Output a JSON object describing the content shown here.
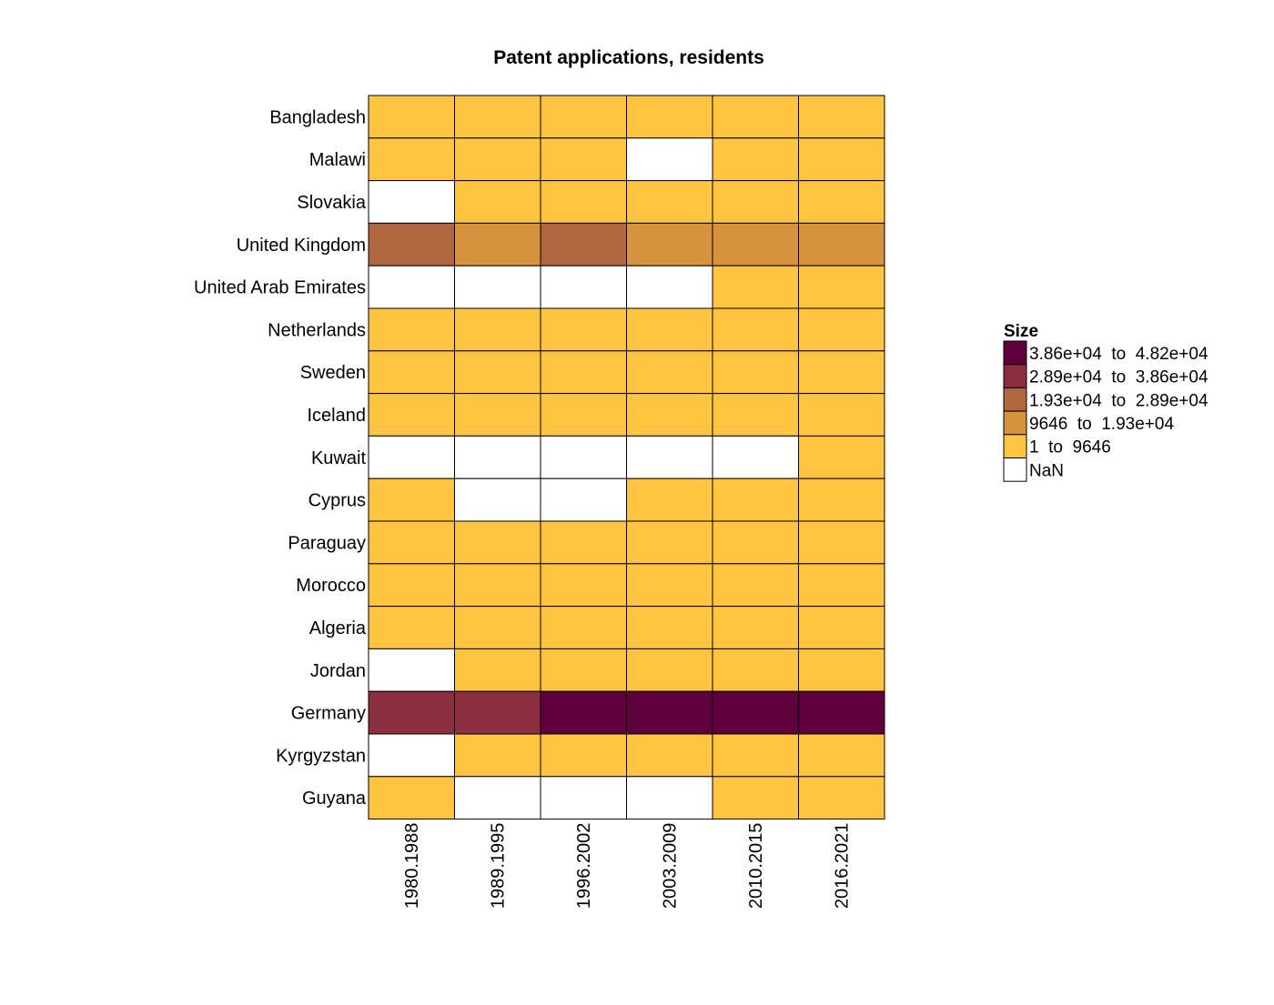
{
  "chart_data": {
    "type": "heatmap",
    "title": "Patent applications, residents",
    "xlabel": "",
    "ylabel": "",
    "categories": [
      "1980.1988",
      "1989.1995",
      "1996.2002",
      "2003.2009",
      "2010.2015",
      "2016.2021"
    ],
    "rows": [
      {
        "name": "Bangladesh",
        "classes": [
          1,
          1,
          1,
          1,
          1,
          1
        ]
      },
      {
        "name": "Malawi",
        "classes": [
          1,
          1,
          1,
          0,
          1,
          1
        ]
      },
      {
        "name": "Slovakia",
        "classes": [
          0,
          1,
          1,
          1,
          1,
          1
        ]
      },
      {
        "name": "United Kingdom",
        "classes": [
          3,
          2,
          3,
          2,
          2,
          2
        ]
      },
      {
        "name": "United Arab Emirates",
        "classes": [
          0,
          0,
          0,
          0,
          1,
          1
        ]
      },
      {
        "name": "Netherlands",
        "classes": [
          1,
          1,
          1,
          1,
          1,
          1
        ]
      },
      {
        "name": "Sweden",
        "classes": [
          1,
          1,
          1,
          1,
          1,
          1
        ]
      },
      {
        "name": "Iceland",
        "classes": [
          1,
          1,
          1,
          1,
          1,
          1
        ]
      },
      {
        "name": "Kuwait",
        "classes": [
          0,
          0,
          0,
          0,
          0,
          1
        ]
      },
      {
        "name": "Cyprus",
        "classes": [
          1,
          0,
          0,
          1,
          1,
          1
        ]
      },
      {
        "name": "Paraguay",
        "classes": [
          1,
          1,
          1,
          1,
          1,
          1
        ]
      },
      {
        "name": "Morocco",
        "classes": [
          1,
          1,
          1,
          1,
          1,
          1
        ]
      },
      {
        "name": "Algeria",
        "classes": [
          1,
          1,
          1,
          1,
          1,
          1
        ]
      },
      {
        "name": "Jordan",
        "classes": [
          0,
          1,
          1,
          1,
          1,
          1
        ]
      },
      {
        "name": "Germany",
        "classes": [
          4,
          4,
          5,
          5,
          5,
          5
        ]
      },
      {
        "name": "Kyrgyzstan",
        "classes": [
          0,
          1,
          1,
          1,
          1,
          1
        ]
      },
      {
        "name": "Guyana",
        "classes": [
          1,
          0,
          0,
          0,
          1,
          1
        ]
      }
    ],
    "legend": {
      "title": "Size",
      "placement": "right",
      "items": [
        {
          "label": "3.86e+04  to  4.82e+04",
          "color": "#5f003c"
        },
        {
          "label": "2.89e+04  to  3.86e+04",
          "color": "#8a2e40"
        },
        {
          "label": "1.93e+04  to  2.89e+04",
          "color": "#b06640"
        },
        {
          "label": "9646  to  1.93e+04",
          "color": "#d7923d"
        },
        {
          "label": "1  to  9646",
          "color": "#fec442"
        },
        {
          "label": "NaN",
          "color": "#ffffff"
        }
      ]
    },
    "class_colors": [
      "#ffffff",
      "#fec442",
      "#d7923d",
      "#b06640",
      "#8a2e40",
      "#5f003c"
    ]
  }
}
